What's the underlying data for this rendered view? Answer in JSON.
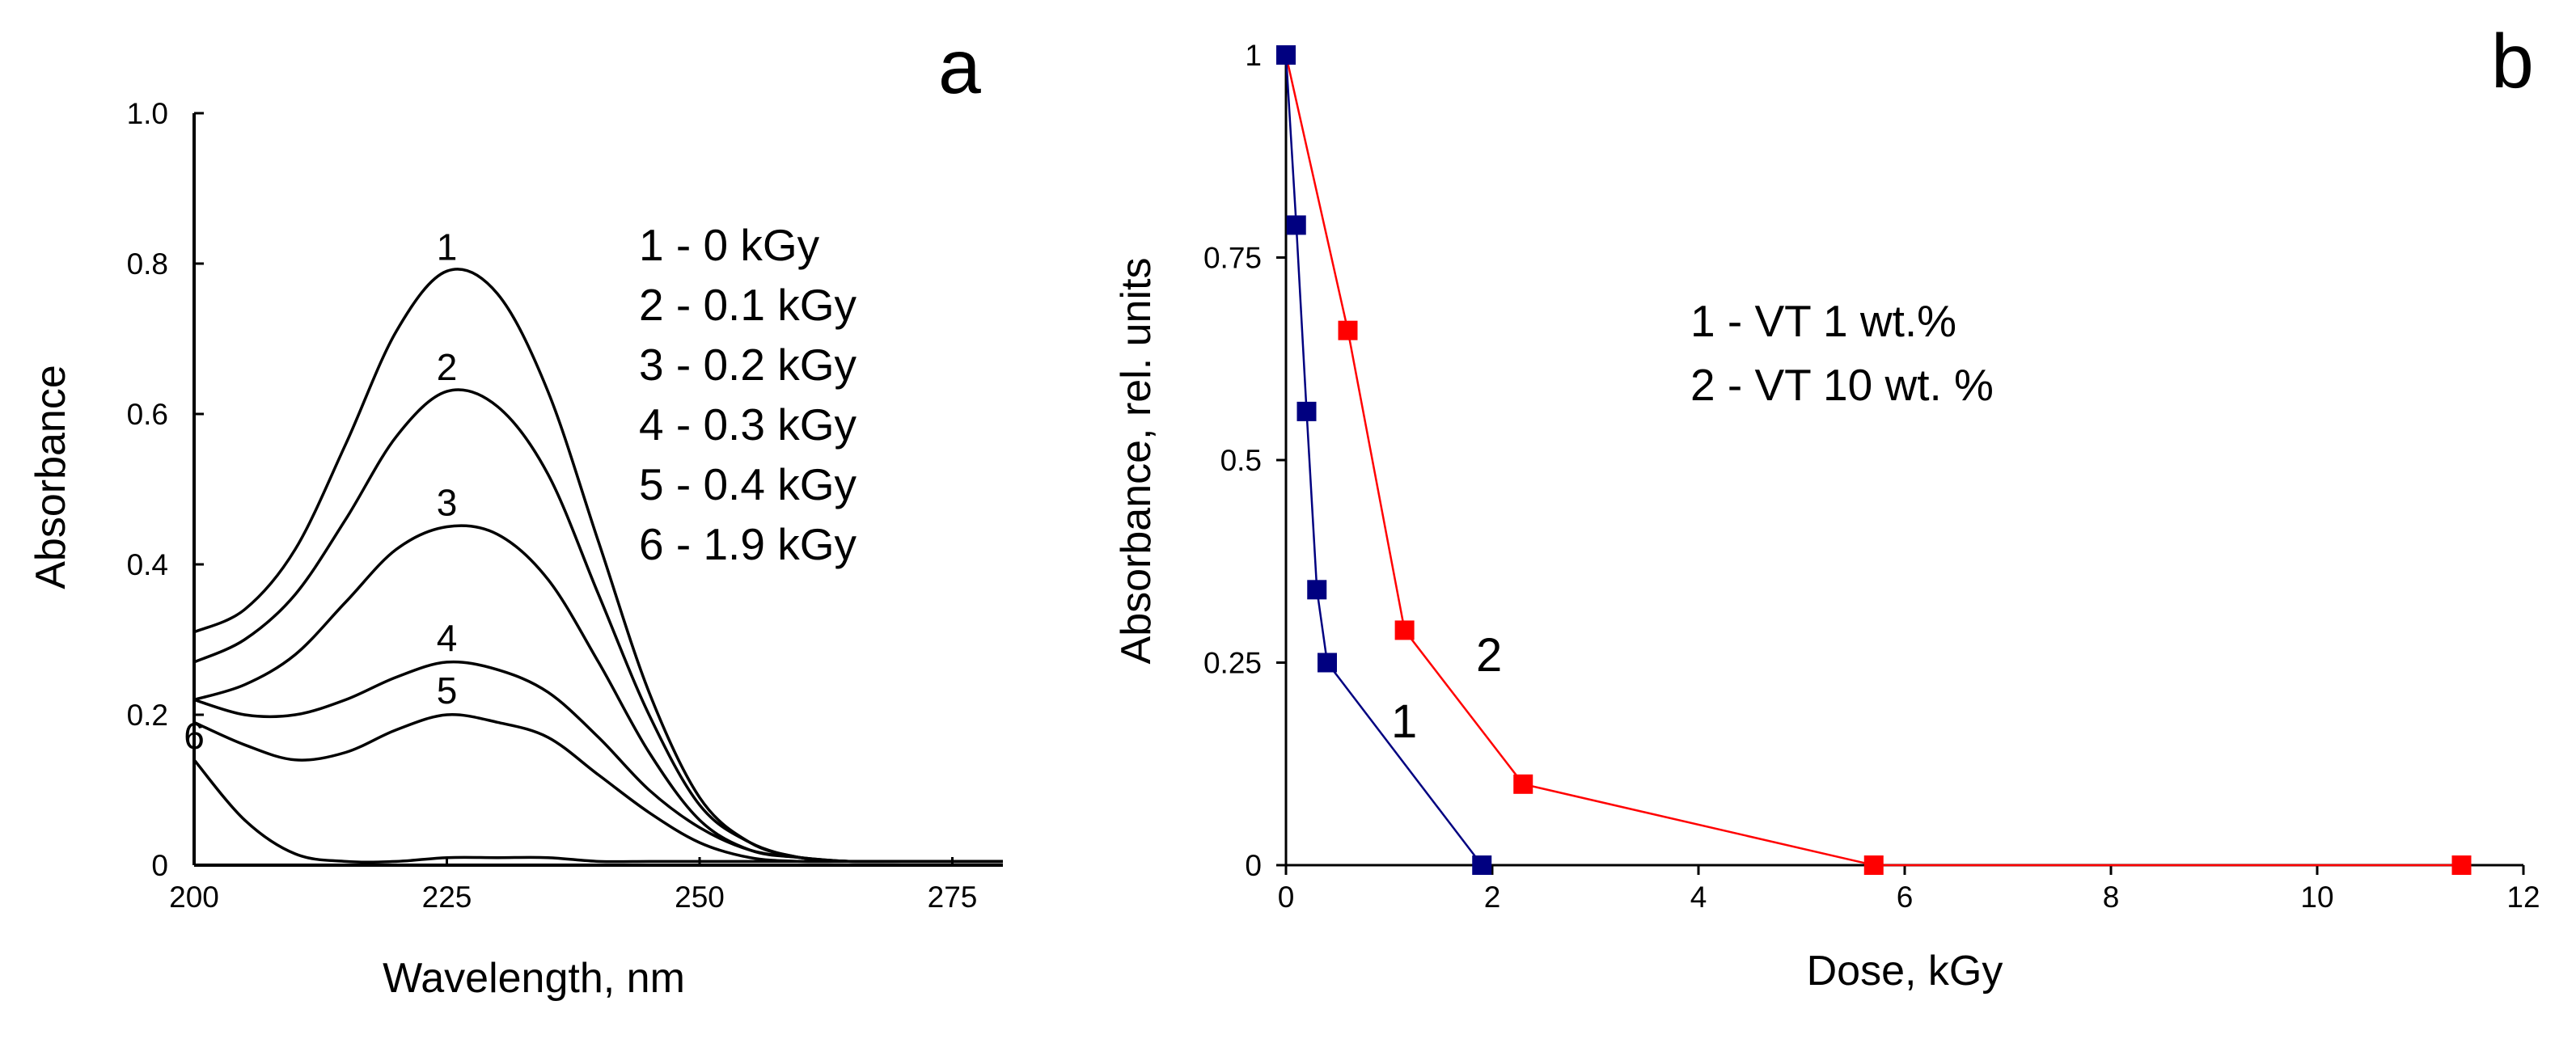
{
  "chart_data": [
    {
      "panel_label": "a",
      "type": "line",
      "xlabel": "Wavelength, nm",
      "ylabel": "Absorbance",
      "xlim": [
        200,
        280
      ],
      "ylim": [
        0,
        1.0
      ],
      "xticks": [
        "200",
        "225",
        "250",
        "275"
      ],
      "yticks": [
        "0",
        "0.2",
        "0.4",
        "0.6",
        "0.8",
        "1.0"
      ],
      "legend": [
        "1 - 0 kGy",
        "2 - 0.1 kGy",
        "3 - 0.2 kGy",
        "4 - 0.3 kGy",
        "5 - 0.4 kGy",
        "6 - 1.9 kGy"
      ],
      "series": [
        {
          "name": "1",
          "x": [
            200,
            205,
            210,
            215,
            220,
            225,
            230,
            235,
            240,
            245,
            250,
            255,
            260,
            265,
            270,
            275,
            280
          ],
          "values": [
            0.31,
            0.34,
            0.42,
            0.56,
            0.71,
            0.79,
            0.76,
            0.63,
            0.43,
            0.23,
            0.09,
            0.03,
            0.01,
            0.005,
            0.005,
            0.005,
            0.005
          ]
        },
        {
          "name": "2",
          "x": [
            200,
            205,
            210,
            215,
            220,
            225,
            230,
            235,
            240,
            245,
            250,
            255,
            260,
            265,
            270,
            275,
            280
          ],
          "values": [
            0.27,
            0.3,
            0.36,
            0.46,
            0.57,
            0.63,
            0.61,
            0.52,
            0.36,
            0.2,
            0.08,
            0.03,
            0.01,
            0.005,
            0.005,
            0.005,
            0.005
          ]
        },
        {
          "name": "3",
          "x": [
            200,
            205,
            210,
            215,
            220,
            225,
            230,
            235,
            240,
            245,
            250,
            255,
            260,
            265,
            270,
            275,
            280
          ],
          "values": [
            0.22,
            0.24,
            0.28,
            0.35,
            0.42,
            0.45,
            0.44,
            0.38,
            0.27,
            0.15,
            0.06,
            0.02,
            0.01,
            0.005,
            0.005,
            0.005,
            0.005
          ]
        },
        {
          "name": "4",
          "x": [
            200,
            205,
            210,
            215,
            220,
            225,
            230,
            235,
            240,
            245,
            250,
            255,
            260,
            265,
            270,
            275,
            280
          ],
          "values": [
            0.22,
            0.2,
            0.2,
            0.22,
            0.25,
            0.27,
            0.26,
            0.23,
            0.17,
            0.1,
            0.05,
            0.02,
            0.01,
            0.005,
            0.005,
            0.005,
            0.005
          ]
        },
        {
          "name": "5",
          "x": [
            200,
            205,
            210,
            215,
            220,
            225,
            230,
            235,
            240,
            245,
            250,
            255,
            260,
            265,
            270,
            275,
            280
          ],
          "values": [
            0.19,
            0.16,
            0.14,
            0.15,
            0.18,
            0.2,
            0.19,
            0.17,
            0.12,
            0.07,
            0.03,
            0.01,
            0.005,
            0.005,
            0.005,
            0.005,
            0.005
          ]
        },
        {
          "name": "6",
          "x": [
            200,
            205,
            210,
            215,
            220,
            225,
            230,
            235,
            240,
            245,
            250,
            255,
            260,
            265,
            270,
            275,
            280
          ],
          "values": [
            0.14,
            0.06,
            0.015,
            0.005,
            0.005,
            0.01,
            0.01,
            0.01,
            0.005,
            0.005,
            0.005,
            0.005,
            0.005,
            0.005,
            0.005,
            0.005,
            0.005
          ]
        }
      ]
    },
    {
      "panel_label": "b",
      "type": "line",
      "xlabel": "Dose, kGy",
      "ylabel": "Absorbance, rel. units",
      "xlim": [
        0,
        12
      ],
      "ylim": [
        0,
        1
      ],
      "xticks": [
        "0",
        "2",
        "4",
        "6",
        "8",
        "10",
        "12"
      ],
      "yticks": [
        "0",
        "0.25",
        "0.5",
        "0.75",
        "1"
      ],
      "legend": [
        "1 - VT 1 wt.%",
        "2 - VT 10 wt. %"
      ],
      "series": [
        {
          "name": "1",
          "color": "#000080",
          "x": [
            0,
            0.1,
            0.2,
            0.3,
            0.4,
            1.9
          ],
          "values": [
            1,
            0.79,
            0.56,
            0.34,
            0.25,
            0
          ]
        },
        {
          "name": "2",
          "color": "#ff0000",
          "x": [
            0,
            0.6,
            1.15,
            2.3,
            5.7,
            11.4
          ],
          "values": [
            1,
            0.66,
            0.29,
            0.1,
            0,
            0
          ]
        }
      ]
    }
  ]
}
